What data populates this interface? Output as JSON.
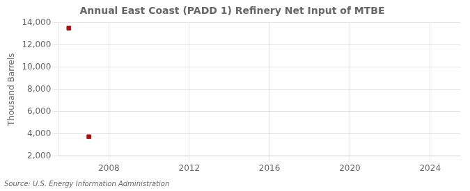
{
  "chart_data": {
    "type": "scatter",
    "title": "Annual East Coast (PADD 1) Refinery Net Input of MTBE",
    "ylabel": "Thousand Barrels",
    "source": "Source: U.S. Energy Information Administration",
    "x": [
      2006,
      2007
    ],
    "values": [
      13522,
      3740
    ],
    "color": "#aa1111",
    "marker": "square",
    "xlim": [
      2005.5,
      2025.5
    ],
    "xticks": [
      2008,
      2012,
      2016,
      2020,
      2024
    ],
    "ylim": [
      2000,
      14000
    ],
    "yticks": [
      {
        "value": 2000,
        "label": "2,000"
      },
      {
        "value": 4000,
        "label": "4,000"
      },
      {
        "value": 6000,
        "label": "6,000"
      },
      {
        "value": 8000,
        "label": "8,000"
      },
      {
        "value": 10000,
        "label": "10,000"
      },
      {
        "value": 12000,
        "label": "12,000"
      },
      {
        "value": 14000,
        "label": "14,000"
      }
    ],
    "grid": true
  }
}
